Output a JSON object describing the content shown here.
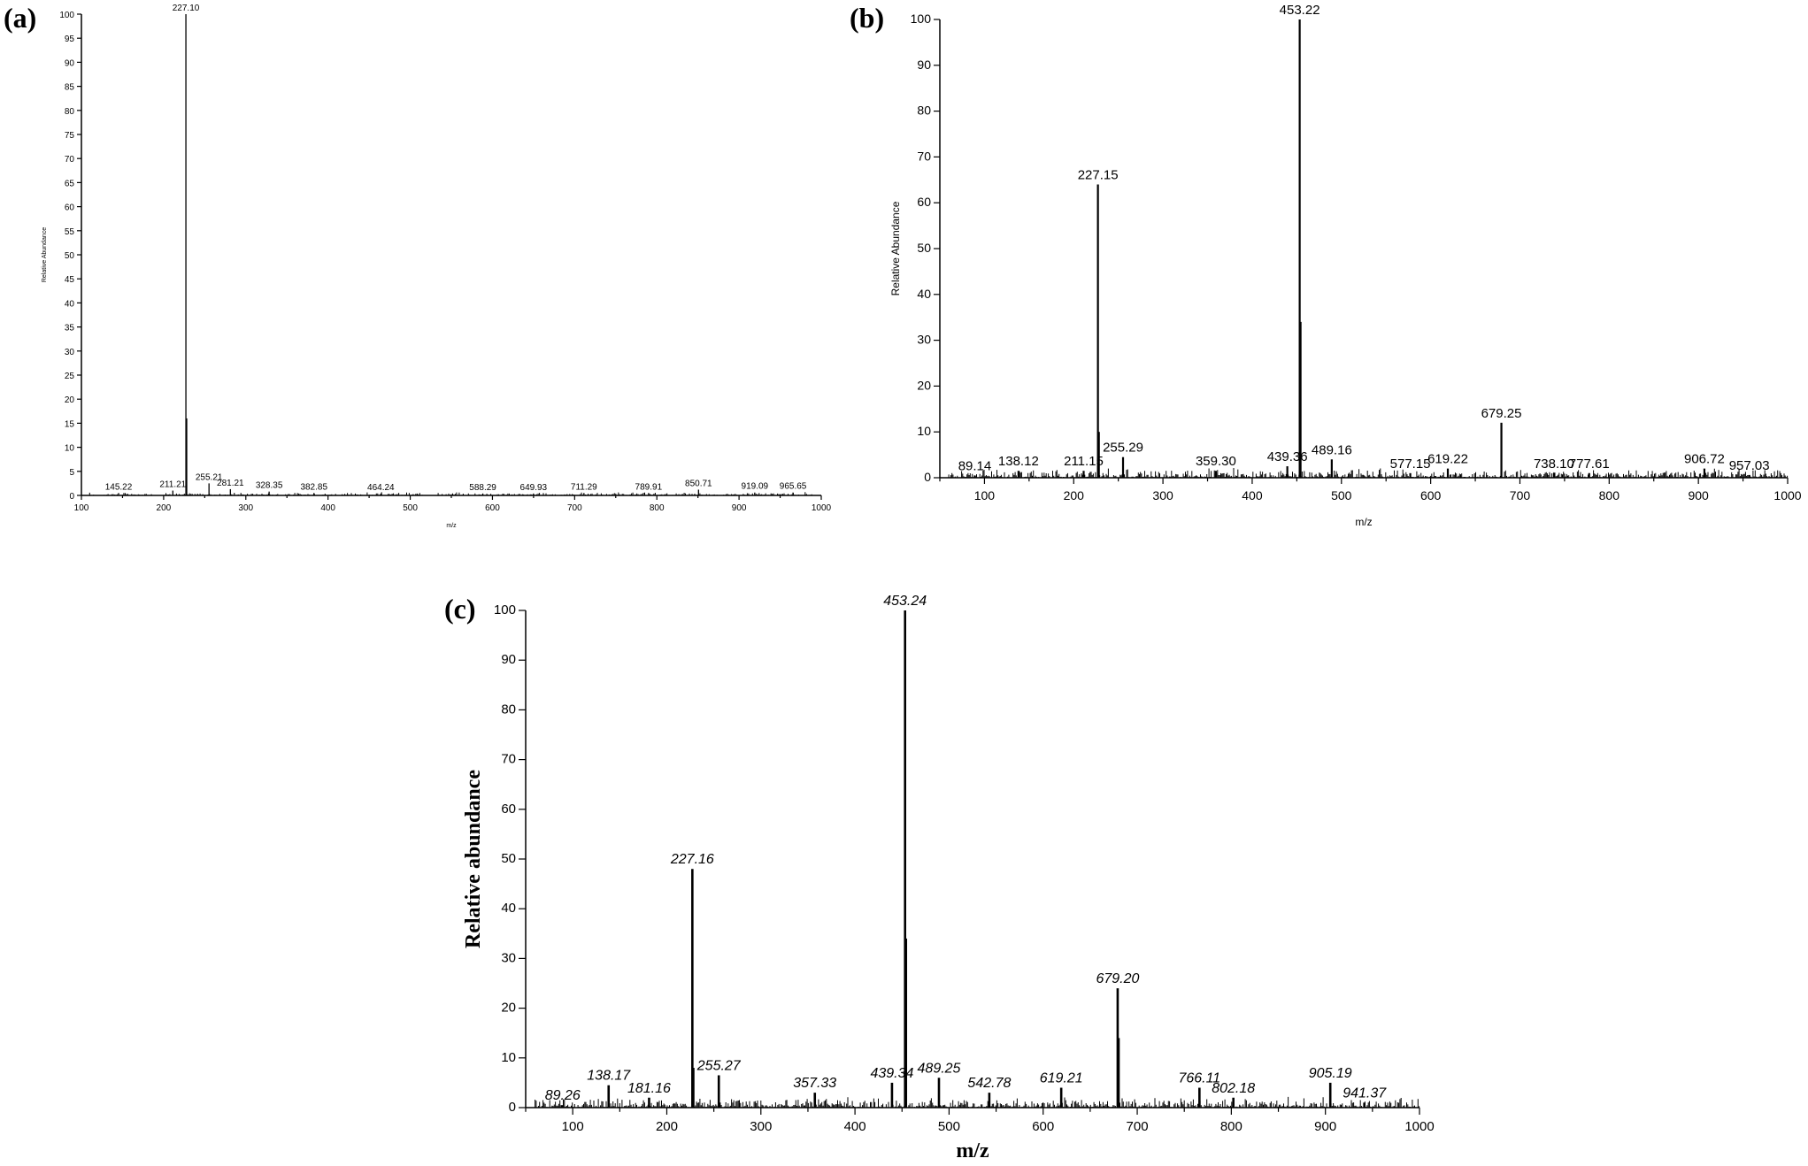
{
  "panels": {
    "a": "(a)",
    "b": "(b)",
    "c": "(c)"
  },
  "chart_data": [
    {
      "id": "a",
      "type": "bar",
      "xlabel": "m/z",
      "ylabel": "Relative Abundance",
      "xlim": [
        100,
        1000
      ],
      "ylim": [
        0,
        100
      ],
      "xticks": [
        100,
        200,
        300,
        400,
        500,
        600,
        700,
        800,
        900,
        1000
      ],
      "yticks": [
        0,
        5,
        10,
        15,
        20,
        25,
        30,
        35,
        40,
        45,
        50,
        55,
        60,
        65,
        70,
        75,
        80,
        85,
        90,
        95,
        100
      ],
      "peaks": [
        {
          "x": 145.22,
          "y": 0.5,
          "label": "145.22"
        },
        {
          "x": 211.21,
          "y": 1.0,
          "label": "211.21"
        },
        {
          "x": 227.1,
          "y": 100,
          "label": "227.10"
        },
        {
          "x": 228.1,
          "y": 16,
          "label": ""
        },
        {
          "x": 255.21,
          "y": 2.5,
          "label": "255.21"
        },
        {
          "x": 281.21,
          "y": 1.3,
          "label": "281.21"
        },
        {
          "x": 328.35,
          "y": 0.8,
          "label": "328.35"
        },
        {
          "x": 382.85,
          "y": 0.5,
          "label": "382.85"
        },
        {
          "x": 464.24,
          "y": 0.4,
          "label": "464.24"
        },
        {
          "x": 588.29,
          "y": 0.4,
          "label": "588.29"
        },
        {
          "x": 649.93,
          "y": 0.4,
          "label": "649.93"
        },
        {
          "x": 711.29,
          "y": 0.5,
          "label": "711.29"
        },
        {
          "x": 789.91,
          "y": 0.5,
          "label": "789.91"
        },
        {
          "x": 850.71,
          "y": 1.2,
          "label": "850.71"
        },
        {
          "x": 919.09,
          "y": 0.6,
          "label": "919.09"
        },
        {
          "x": 965.65,
          "y": 0.6,
          "label": "965.65"
        }
      ]
    },
    {
      "id": "b",
      "type": "bar",
      "xlabel": "m/z",
      "ylabel": "Relative Abundance",
      "xlim": [
        50,
        1000
      ],
      "ylim": [
        0,
        100
      ],
      "xticks": [
        100,
        200,
        300,
        400,
        500,
        600,
        700,
        800,
        900,
        1000
      ],
      "yticks": [
        0,
        10,
        20,
        30,
        40,
        50,
        60,
        70,
        80,
        90,
        100
      ],
      "peaks": [
        {
          "x": 89.14,
          "y": 0.5,
          "label": "89.14"
        },
        {
          "x": 138.12,
          "y": 1.5,
          "label": "138.12"
        },
        {
          "x": 211.15,
          "y": 1.5,
          "label": "211.15"
        },
        {
          "x": 227.15,
          "y": 64,
          "label": "227.15"
        },
        {
          "x": 228.2,
          "y": 10,
          "label": ""
        },
        {
          "x": 255.29,
          "y": 4.5,
          "label": "255.29"
        },
        {
          "x": 359.3,
          "y": 1.5,
          "label": "359.30"
        },
        {
          "x": 439.36,
          "y": 2.5,
          "label": "439.36"
        },
        {
          "x": 453.22,
          "y": 100,
          "label": "453.22"
        },
        {
          "x": 454.2,
          "y": 34,
          "label": ""
        },
        {
          "x": 489.16,
          "y": 4,
          "label": "489.16"
        },
        {
          "x": 577.15,
          "y": 1,
          "label": "577.15"
        },
        {
          "x": 619.22,
          "y": 2,
          "label": "619.22"
        },
        {
          "x": 679.25,
          "y": 12,
          "label": "679.25"
        },
        {
          "x": 738.1,
          "y": 1,
          "label": "738.10"
        },
        {
          "x": 777.61,
          "y": 1,
          "label": "777.61"
        },
        {
          "x": 906.72,
          "y": 2,
          "label": "906.72"
        },
        {
          "x": 957.03,
          "y": 0.6,
          "label": "957.03"
        }
      ]
    },
    {
      "id": "c",
      "type": "bar",
      "xlabel": "m/z",
      "ylabel": "Relative abundance",
      "xlim": [
        50,
        1000
      ],
      "ylim": [
        0,
        100
      ],
      "xticks": [
        100,
        200,
        300,
        400,
        500,
        600,
        700,
        800,
        900,
        1000
      ],
      "yticks": [
        0,
        10,
        20,
        30,
        40,
        50,
        60,
        70,
        80,
        90,
        100
      ],
      "peaks": [
        {
          "x": 89.26,
          "y": 0.5,
          "label": "89.26"
        },
        {
          "x": 138.17,
          "y": 4.5,
          "label": "138.17"
        },
        {
          "x": 181.16,
          "y": 2,
          "label": "181.16"
        },
        {
          "x": 227.16,
          "y": 48,
          "label": "227.16"
        },
        {
          "x": 228.2,
          "y": 8,
          "label": ""
        },
        {
          "x": 255.27,
          "y": 6.5,
          "label": "255.27"
        },
        {
          "x": 357.33,
          "y": 3,
          "label": "357.33"
        },
        {
          "x": 439.34,
          "y": 5,
          "label": "439.34"
        },
        {
          "x": 453.24,
          "y": 100,
          "label": "453.24"
        },
        {
          "x": 454.2,
          "y": 34,
          "label": ""
        },
        {
          "x": 489.25,
          "y": 6,
          "label": "489.25"
        },
        {
          "x": 542.78,
          "y": 3,
          "label": "542.78"
        },
        {
          "x": 619.21,
          "y": 4,
          "label": "619.21"
        },
        {
          "x": 679.2,
          "y": 24,
          "label": "679.20"
        },
        {
          "x": 680.2,
          "y": 14,
          "label": ""
        },
        {
          "x": 766.11,
          "y": 4,
          "label": "766.11"
        },
        {
          "x": 802.18,
          "y": 2,
          "label": "802.18"
        },
        {
          "x": 905.19,
          "y": 5,
          "label": "905.19"
        },
        {
          "x": 941.37,
          "y": 1,
          "label": "941.37"
        }
      ]
    }
  ]
}
